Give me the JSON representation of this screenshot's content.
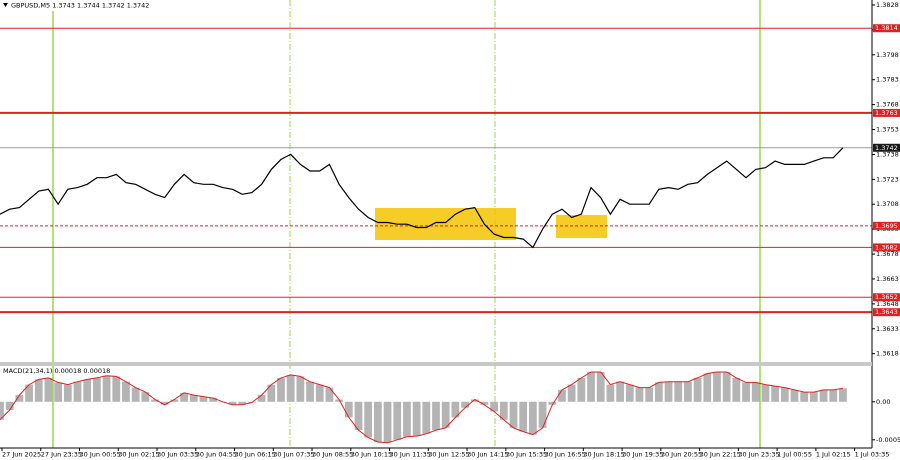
{
  "chart_data": [
    {
      "type": "line",
      "symbol": "GBPUSD,M5",
      "readout": [
        1.3743,
        1.3744,
        1.3742,
        1.3742
      ],
      "color": "#000000",
      "x": [
        0,
        4,
        8,
        12,
        16,
        20,
        24,
        28,
        32,
        36,
        40,
        44,
        48,
        52,
        56,
        60,
        64,
        68,
        72,
        76,
        80,
        84,
        88,
        92,
        96,
        100,
        104,
        108,
        112,
        116,
        120,
        124,
        128,
        132,
        136,
        140,
        144,
        148,
        152,
        156,
        160,
        164,
        168,
        172,
        176,
        180,
        184,
        188,
        192,
        196,
        200,
        204,
        208,
        212,
        216,
        220,
        224,
        228,
        232,
        236,
        240,
        244,
        248,
        252,
        256,
        260,
        264,
        268,
        272,
        276,
        280,
        284,
        288,
        292,
        296,
        300,
        304,
        308,
        312,
        316,
        320,
        324,
        328,
        332,
        336,
        340,
        344,
        348
      ],
      "values": [
        1.3702,
        1.3705,
        1.3706,
        1.3711,
        1.3716,
        1.3717,
        1.3708,
        1.3717,
        1.3718,
        1.372,
        1.3724,
        1.3724,
        1.3726,
        1.3721,
        1.372,
        1.3717,
        1.3714,
        1.3712,
        1.372,
        1.3726,
        1.3721,
        1.372,
        1.372,
        1.3718,
        1.3717,
        1.3714,
        1.3715,
        1.372,
        1.3729,
        1.3735,
        1.3738,
        1.3732,
        1.3728,
        1.3728,
        1.3732,
        1.372,
        1.3712,
        1.3705,
        1.37,
        1.3697,
        1.3697,
        1.3696,
        1.3696,
        1.3694,
        1.3694,
        1.3697,
        1.3697,
        1.3702,
        1.3705,
        1.3706,
        1.3696,
        1.369,
        1.3688,
        1.3688,
        1.3687,
        1.3682,
        1.3693,
        1.3702,
        1.3705,
        1.37,
        1.3702,
        1.3718,
        1.3712,
        1.3702,
        1.3711,
        1.3708,
        1.3708,
        1.3708,
        1.3717,
        1.3718,
        1.3717,
        1.372,
        1.3721,
        1.3726,
        1.373,
        1.3734,
        1.3729,
        1.3724,
        1.3729,
        1.373,
        1.3734,
        1.3732,
        1.3732,
        1.3732,
        1.3734,
        1.3736,
        1.3736,
        1.3742
      ],
      "xlim": [
        0,
        360
      ],
      "ylim": [
        1.3613,
        1.3831
      ],
      "yticks": [
        1.3828,
        1.3813,
        1.3798,
        1.3783,
        1.3768,
        1.3753,
        1.3738,
        1.3723,
        1.3708,
        1.3693,
        1.3678,
        1.3663,
        1.3648,
        1.3633,
        1.3618
      ],
      "xticks": [
        {
          "value": 0,
          "label": "27 Jun 2025"
        },
        {
          "value": 16,
          "label": "27 Jun 23:35"
        },
        {
          "value": 32,
          "label": "30 Jun 00:55"
        },
        {
          "value": 48,
          "label": "30 Jun 02:15"
        },
        {
          "value": 64,
          "label": "30 Jun 03:35"
        },
        {
          "value": 80,
          "label": "30 Jun 04:55"
        },
        {
          "value": 96,
          "label": "30 Jun 06:15"
        },
        {
          "value": 112,
          "label": "30 Jun 07:35"
        },
        {
          "value": 128,
          "label": "30 Jun 08:55"
        },
        {
          "value": 144,
          "label": "30 Jun 10:15"
        },
        {
          "value": 160,
          "label": "30 Jun 11:35"
        },
        {
          "value": 176,
          "label": "30 Jun 12:55"
        },
        {
          "value": 192,
          "label": "30 Jun 14:15"
        },
        {
          "value": 208,
          "label": "30 Jun 15:35"
        },
        {
          "value": 224,
          "label": "30 Jun 16:55"
        },
        {
          "value": 240,
          "label": "30 Jun 18:15"
        },
        {
          "value": 256,
          "label": "30 Jun 19:35"
        },
        {
          "value": 272,
          "label": "30 Jun 20:55"
        },
        {
          "value": 288,
          "label": "30 Jun 22:15"
        },
        {
          "value": 304,
          "label": "30 Jun 23:35"
        },
        {
          "value": 320,
          "label": "1 Jul 00:55"
        },
        {
          "value": 336,
          "label": "1 Jul 02:15"
        },
        {
          "value": 352,
          "label": "1 Jul 03:35"
        }
      ],
      "levels": [
        {
          "value": 1.3814,
          "color": "#e02020",
          "width": 1,
          "style": "solid"
        },
        {
          "value": 1.3763,
          "color": "#e02020",
          "width": 2,
          "style": "solid"
        },
        {
          "value": 1.3742,
          "color": "#9a9a9a",
          "width": 1,
          "style": "solid"
        },
        {
          "value": 1.3695,
          "color": "#e02020",
          "width": 1,
          "style": "dashed"
        },
        {
          "value": 1.3682,
          "color": "#e02020",
          "width": 1,
          "style": "solid"
        },
        {
          "value": 1.3652,
          "color": "#e02020",
          "width": 1,
          "style": "solid"
        },
        {
          "value": 1.3643,
          "color": "#e02020",
          "width": 2,
          "style": "solid"
        }
      ]
    },
    {
      "type": "bar",
      "title": "MACD(21,34,1)",
      "readout": [
        0.00018,
        0.00018
      ],
      "color": "#b4b4b4",
      "line_color": "#e02020",
      "x": [
        0,
        4,
        8,
        12,
        16,
        20,
        24,
        28,
        32,
        36,
        40,
        44,
        48,
        52,
        56,
        60,
        64,
        68,
        72,
        76,
        80,
        84,
        88,
        92,
        96,
        100,
        104,
        108,
        112,
        116,
        120,
        124,
        128,
        132,
        136,
        140,
        144,
        148,
        152,
        156,
        160,
        164,
        168,
        172,
        176,
        180,
        184,
        188,
        192,
        196,
        200,
        204,
        208,
        212,
        216,
        220,
        224,
        228,
        232,
        236,
        240,
        244,
        248,
        252,
        256,
        260,
        264,
        268,
        272,
        276,
        280,
        284,
        288,
        292,
        296,
        300,
        304,
        308,
        312,
        316,
        320,
        324,
        328,
        332,
        336,
        340,
        344,
        348
      ],
      "values": [
        -0.00024,
        -0.00011,
        9e-05,
        0.00023,
        0.0003,
        0.00032,
        0.00026,
        0.00023,
        0.00027,
        0.0003,
        0.00032,
        0.00035,
        0.00034,
        0.00027,
        0.00019,
        0.00013,
        3e-05,
        -4e-05,
        3e-05,
        0.00012,
        9e-05,
        7e-05,
        5e-05,
        0,
        -4e-05,
        -4e-05,
        -1e-05,
        9e-05,
        0.00023,
        0.00032,
        0.00036,
        0.00034,
        0.00027,
        0.00023,
        0.00019,
        3e-05,
        -0.00021,
        -0.00038,
        -0.00048,
        -0.00054,
        -0.00055,
        -0.00051,
        -0.00047,
        -0.00046,
        -0.00043,
        -0.00038,
        -0.00035,
        -0.00021,
        -8e-05,
        3e-05,
        -4e-05,
        -0.00013,
        -0.00024,
        -0.00035,
        -0.0004,
        -0.00044,
        -0.00035,
        -4e-05,
        0.00016,
        0.00023,
        0.00032,
        0.0004,
        0.0004,
        0.00023,
        0.00027,
        0.00023,
        0.00019,
        0.00019,
        0.00026,
        0.00027,
        0.00027,
        0.00027,
        0.00032,
        0.00038,
        0.0004,
        0.0004,
        0.00032,
        0.00026,
        0.00026,
        0.00023,
        0.00021,
        0.00019,
        0.00016,
        0.00013,
        0.00013,
        0.00016,
        0.00016,
        0.00018
      ],
      "xlim": [
        0,
        360
      ],
      "ylim": [
        -0.00062,
        0.00048
      ],
      "yticks": [
        {
          "value": 0,
          "label": "0.00"
        },
        -0.00051
      ]
    }
  ]
}
